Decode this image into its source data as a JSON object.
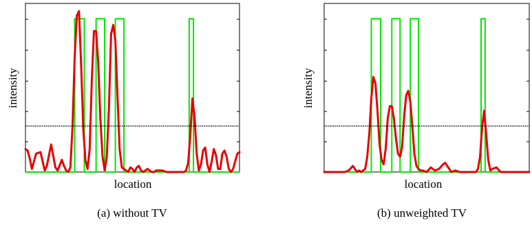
{
  "panels": [
    {
      "caption": "(a) without TV",
      "xlabel": "location",
      "ylabel": "intensity",
      "chart_data": {
        "type": "line",
        "title": "",
        "xlabel": "location",
        "ylabel": "intensity",
        "xlim": [
          0,
          100
        ],
        "ylim": [
          0,
          1.1
        ],
        "grid": false,
        "legend": "none",
        "threshold": 0.3,
        "series": [
          {
            "color": "#00e600",
            "style": "step",
            "x": [
              0,
              23,
              23,
              27.5,
              27.5,
              33,
              33,
              37,
              37,
              42,
              42,
              46,
              46,
              76.5,
              76.5,
              78.5,
              78.5,
              100
            ],
            "values": [
              0,
              0,
              1,
              1,
              0,
              0,
              1,
              1,
              0,
              0,
              1,
              1,
              0,
              0,
              1,
              1,
              0,
              0
            ]
          },
          {
            "color": "#e60000",
            "style": "line",
            "x": [
              0,
              1,
              2,
              3,
              5,
              7,
              8,
              9,
              10,
              12,
              14,
              15,
              17,
              18,
              19,
              20,
              21,
              22,
              23,
              24,
              25,
              26,
              27,
              28,
              29,
              30,
              31,
              32,
              33,
              34,
              35,
              36,
              37,
              38,
              39,
              40,
              41,
              42,
              43,
              44,
              45,
              46,
              47,
              48,
              49,
              50,
              51,
              52,
              53,
              54,
              55,
              56,
              57,
              58,
              59,
              60,
              61,
              62,
              64,
              66,
              68,
              70,
              72,
              74,
              75,
              76,
              77,
              78,
              79,
              80,
              81,
              82,
              83,
              84,
              85,
              86,
              87,
              88,
              89,
              90,
              91,
              92,
              93,
              94,
              95,
              96,
              97,
              98,
              99,
              100
            ],
            "values": [
              0.15,
              0.14,
              0.09,
              0.02,
              0.12,
              0.13,
              0.07,
              0.01,
              0.04,
              0.18,
              0.03,
              0.01,
              0.08,
              0.04,
              0.01,
              0.0,
              0.03,
              0.3,
              0.75,
              1.02,
              1.05,
              0.7,
              0.28,
              0.08,
              0.02,
              0.15,
              0.6,
              0.92,
              0.92,
              0.72,
              0.35,
              0.1,
              0.01,
              0.1,
              0.42,
              0.9,
              0.96,
              0.86,
              0.5,
              0.15,
              0.03,
              0.02,
              0.01,
              0.0,
              0.03,
              0.02,
              0.0,
              0.03,
              0.04,
              0.01,
              0.0,
              0.01,
              0.02,
              0.01,
              0.0,
              0.0,
              0.01,
              0.01,
              0.01,
              0.0,
              0.0,
              0.0,
              0.0,
              0.0,
              0.01,
              0.06,
              0.24,
              0.48,
              0.36,
              0.12,
              0.01,
              0.05,
              0.14,
              0.16,
              0.05,
              0.0,
              0.07,
              0.15,
              0.11,
              0.02,
              0.02,
              0.12,
              0.14,
              0.1,
              0.02,
              0.0,
              0.02,
              0.07,
              0.12,
              0.13
            ]
          }
        ]
      }
    },
    {
      "caption": "(b) unweighted TV",
      "xlabel": "location",
      "ylabel": "intensity",
      "chart_data": {
        "type": "line",
        "title": "",
        "xlabel": "location",
        "ylabel": "intensity",
        "xlim": [
          0,
          100
        ],
        "ylim": [
          0,
          1.1
        ],
        "grid": false,
        "legend": "none",
        "threshold": 0.3,
        "series": [
          {
            "color": "#00e600",
            "style": "step",
            "x": [
              0,
              23,
              23,
              27.5,
              27.5,
              33,
              33,
              37,
              37,
              42,
              42,
              46,
              46,
              76.5,
              76.5,
              78.5,
              78.5,
              100
            ],
            "values": [
              0,
              0,
              1,
              1,
              0,
              0,
              1,
              1,
              0,
              0,
              1,
              1,
              0,
              0,
              1,
              1,
              0,
              0
            ]
          },
          {
            "color": "#e60000",
            "style": "line",
            "x": [
              0,
              10,
              12,
              14,
              16,
              17,
              18,
              19,
              20,
              21,
              22,
              23,
              24,
              25,
              26,
              27,
              28,
              29,
              30,
              31,
              32,
              33,
              34,
              35,
              36,
              37,
              38,
              39,
              40,
              41,
              42,
              43,
              44,
              45,
              46,
              47,
              48,
              50,
              52,
              54,
              56,
              58,
              59,
              60,
              61,
              62,
              64,
              66,
              68,
              70,
              72,
              74,
              75,
              76,
              77,
              78,
              79,
              80,
              81,
              82,
              84,
              86,
              88,
              90,
              100
            ],
            "values": [
              0.0,
              0.0,
              0.01,
              0.04,
              0.0,
              0.01,
              0.0,
              0.01,
              0.02,
              0.1,
              0.25,
              0.48,
              0.62,
              0.58,
              0.4,
              0.18,
              0.08,
              0.05,
              0.15,
              0.35,
              0.43,
              0.43,
              0.35,
              0.22,
              0.12,
              0.1,
              0.16,
              0.36,
              0.5,
              0.53,
              0.46,
              0.3,
              0.12,
              0.04,
              0.02,
              0.01,
              0.01,
              0.0,
              0.03,
              0.01,
              0.02,
              0.05,
              0.06,
              0.04,
              0.02,
              0.0,
              0.01,
              0.0,
              0.0,
              0.0,
              0.0,
              0.0,
              0.02,
              0.1,
              0.29,
              0.4,
              0.25,
              0.08,
              0.01,
              0.02,
              0.03,
              0.0,
              0.0,
              0.0,
              0.0
            ]
          }
        ]
      }
    }
  ]
}
